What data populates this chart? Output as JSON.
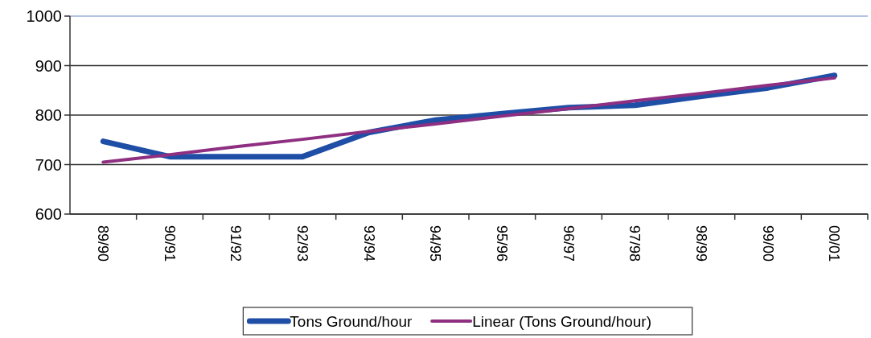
{
  "chart_data": {
    "type": "line",
    "categories": [
      "89/90",
      "90/91",
      "91/92",
      "92/93",
      "93/94",
      "94/95",
      "95/96",
      "96/97",
      "97/98",
      "98/99",
      "99/00",
      "00/01"
    ],
    "series": [
      {
        "name": "Tons Ground/hour",
        "color": "#1f4ea6",
        "values": [
          747,
          716,
          716,
          716,
          765,
          790,
          803,
          815,
          820,
          838,
          855,
          880
        ]
      },
      {
        "name": "Linear (Tons Ground/hour)",
        "color": "#8e2f82",
        "values": [
          705,
          720,
          736,
          751,
          767,
          782,
          798,
          813,
          829,
          844,
          860,
          875
        ]
      }
    ],
    "ylim": [
      600,
      1000
    ],
    "yticks": [
      600,
      700,
      800,
      900,
      1000
    ],
    "grid": "y",
    "legend": "bottom"
  }
}
